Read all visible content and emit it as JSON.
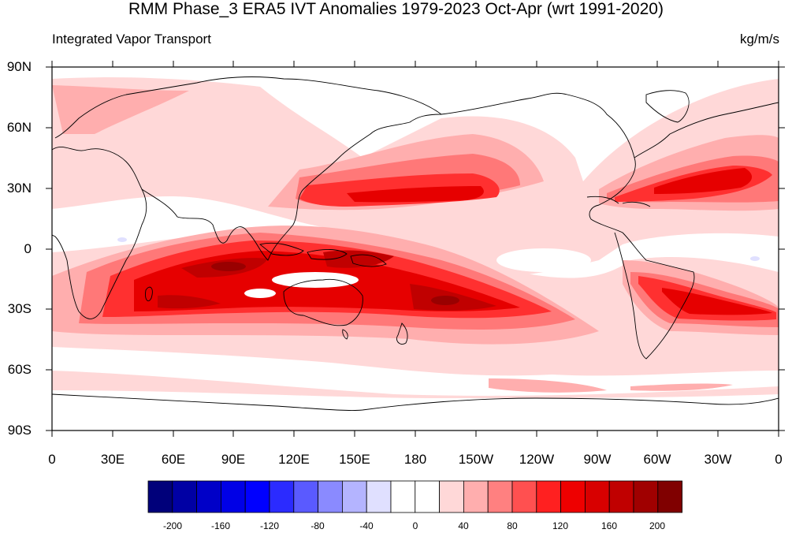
{
  "title": "RMM Phase_3 ERA5 IVT Anomalies 1979-2023 Oct-Apr (wrt 1991-2020)",
  "subtitle_left": "Integrated Vapor Transport",
  "subtitle_right": "kg/m/s",
  "y_labels": [
    "90N",
    "60N",
    "30N",
    "0",
    "30S",
    "60S",
    "90S"
  ],
  "x_labels": [
    "0",
    "30E",
    "60E",
    "90E",
    "120E",
    "150E",
    "180",
    "150W",
    "120W",
    "90W",
    "60W",
    "30W",
    "0"
  ],
  "colorbar": {
    "labels": [
      "-200",
      "-160",
      "-120",
      "-80",
      "-40",
      "0",
      "40",
      "80",
      "120",
      "160",
      "200"
    ],
    "colors": [
      "#00007a",
      "#0000a4",
      "#0000c8",
      "#0000e6",
      "#0000ff",
      "#2b2bff",
      "#5a5aff",
      "#8a8aff",
      "#b4b4ff",
      "#e0e0ff",
      "#ffffff",
      "#ffffff",
      "#ffd8d8",
      "#ffaeae",
      "#ff8080",
      "#ff5050",
      "#ff2020",
      "#ee0000",
      "#d80000",
      "#c00000",
      "#a00000",
      "#800000"
    ]
  },
  "colors": {
    "low": "#ffd8d8",
    "mid": "#ffaeae",
    "mid2": "#ff7878",
    "high": "#ff3030",
    "higher": "#e60000",
    "highest": "#c00000",
    "extreme": "#990000"
  }
}
